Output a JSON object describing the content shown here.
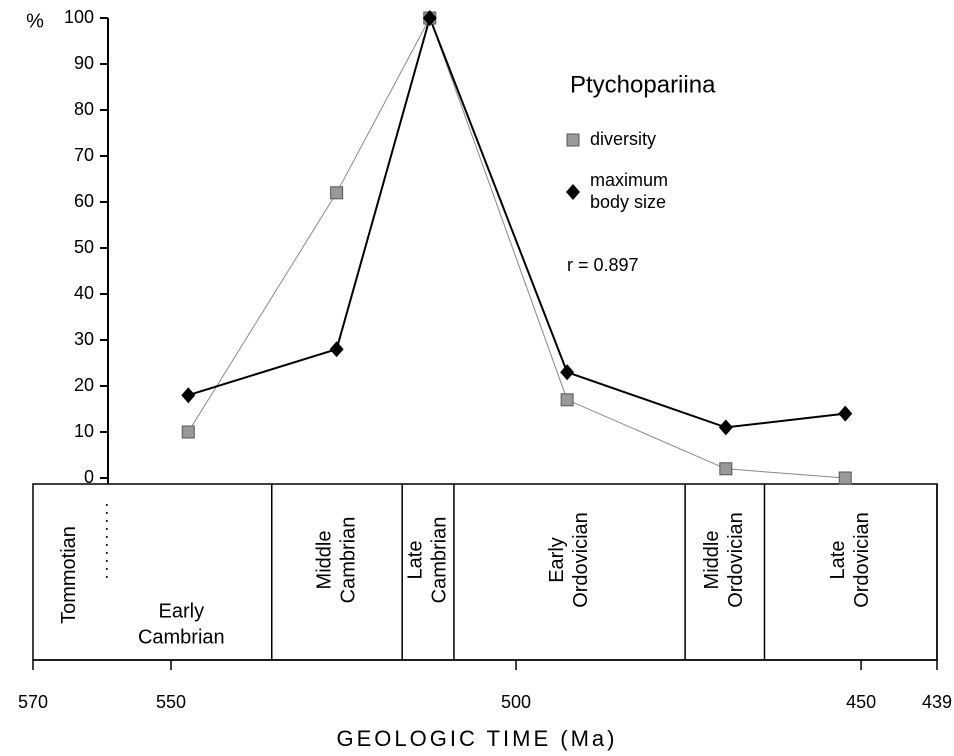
{
  "chart_data": {
    "type": "line",
    "title": "Ptychopariina",
    "y_label": "%",
    "x_label": "GEOLOGIC TIME (Ma)",
    "annotation": "r = 0.897",
    "x": [
      547.5,
      526,
      512.5,
      492.6,
      469.6,
      452.3
    ],
    "series": [
      {
        "name": "diversity",
        "color": "#999999",
        "marker": "square",
        "values": [
          10,
          62,
          100,
          17,
          2,
          0
        ]
      },
      {
        "name": "maximum body size",
        "name_lines": [
          "maximum",
          "body size"
        ],
        "color": "#000000",
        "marker": "diamond",
        "values": [
          18,
          28,
          100,
          23,
          11,
          14
        ]
      }
    ],
    "xlim": [
      570,
      439
    ],
    "xticks": [
      570,
      550,
      500,
      450,
      439
    ],
    "ylim": [
      0,
      100
    ],
    "yticks": [
      0,
      10,
      20,
      30,
      40,
      50,
      60,
      70,
      80,
      90,
      100
    ],
    "periods": [
      {
        "lines": [
          "Early",
          "Cambrian"
        ],
        "start": 570,
        "end": 535.4,
        "sub": {
          "label": "Tommotian",
          "end": 559.3
        }
      },
      {
        "lines": [
          "Middle",
          "Cambrian"
        ],
        "start": 535.4,
        "end": 516.5
      },
      {
        "lines": [
          "Late",
          "Cambrian"
        ],
        "start": 516.5,
        "end": 509
      },
      {
        "lines": [
          "Early",
          "Ordovician"
        ],
        "start": 509,
        "end": 475.5
      },
      {
        "lines": [
          "Middle",
          "Ordovician"
        ],
        "start": 475.5,
        "end": 464
      },
      {
        "lines": [
          "Late",
          "Ordovician"
        ],
        "start": 464,
        "end": 439
      }
    ]
  }
}
